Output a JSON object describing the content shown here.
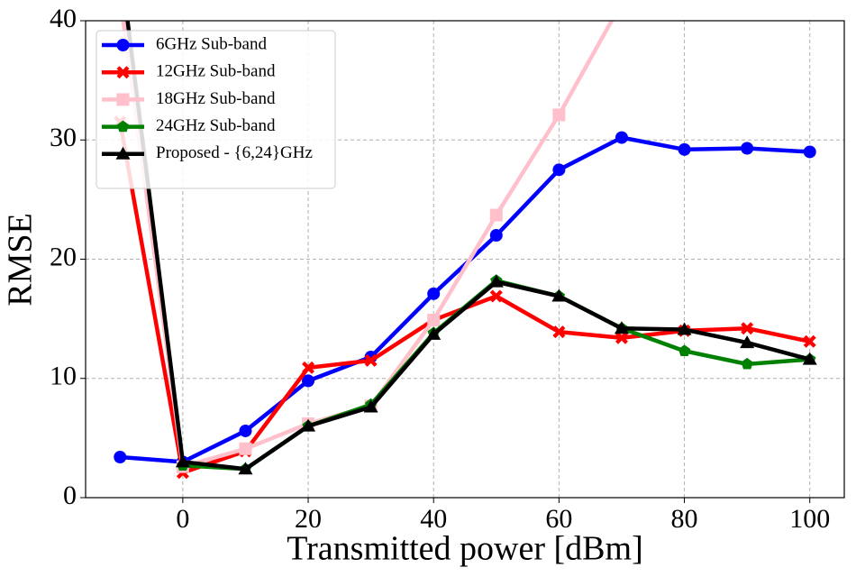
{
  "chart_data": {
    "type": "line",
    "x_label": "Transmitted power [dBm]",
    "y_label": "RMSE",
    "x": [
      -10,
      0,
      10,
      20,
      30,
      40,
      50,
      60,
      70,
      80,
      90,
      100
    ],
    "series": [
      {
        "name": "6GHz Sub-band",
        "color": "#0000ff",
        "marker": "circle",
        "values": [
          3.4,
          3.0,
          5.6,
          9.8,
          11.8,
          17.1,
          22.0,
          27.5,
          30.2,
          29.2,
          29.3,
          29.0
        ]
      },
      {
        "name": "12GHz Sub-band",
        "color": "#ff0000",
        "marker": "x",
        "values": [
          31.5,
          2.1,
          3.9,
          10.9,
          11.5,
          14.9,
          16.9,
          13.9,
          13.4,
          14.0,
          14.2,
          13.1
        ]
      },
      {
        "name": "18GHz Sub-band",
        "color": "#ffc0cb",
        "marker": "square",
        "values": [
          42,
          2.6,
          4.1,
          6.2,
          7.7,
          14.9,
          23.7,
          32.1,
          41.5,
          null,
          null,
          null
        ]
      },
      {
        "name": "24GHz Sub-band",
        "color": "#008000",
        "marker": "pentagon",
        "values": [
          null,
          2.7,
          2.4,
          6.0,
          7.8,
          13.8,
          18.2,
          16.9,
          14.2,
          12.3,
          11.2,
          11.6
        ]
      },
      {
        "name": "Proposed - {6,24}GHz",
        "color": "#000000",
        "marker": "triangle",
        "values": [
          45,
          3.0,
          2.4,
          6.0,
          7.6,
          13.7,
          18.1,
          16.9,
          14.2,
          14.1,
          13.0,
          11.6
        ]
      }
    ],
    "xlim": [
      -15.5,
      105.5
    ],
    "ylim": [
      0,
      40
    ],
    "xticks": [
      0,
      20,
      40,
      60,
      80,
      100
    ],
    "yticks": [
      0,
      10,
      20,
      30,
      40
    ],
    "grid": true,
    "legend": "upper left"
  }
}
